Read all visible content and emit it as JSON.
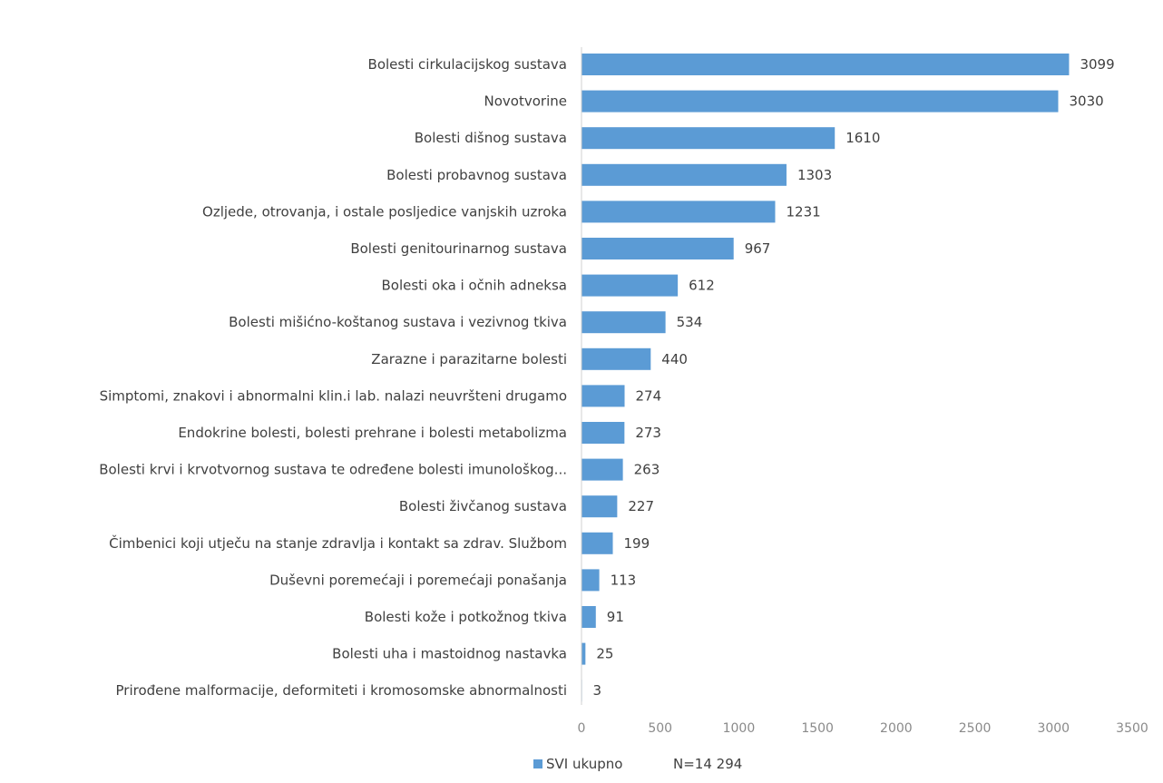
{
  "chart_data": {
    "type": "bar",
    "orientation": "horizontal",
    "categories": [
      "Bolesti cirkulacijskog sustava",
      "Novotvorine",
      "Bolesti dišnog sustava",
      "Bolesti probavnog sustava",
      "Ozljede, otrovanja, i ostale posljedice vanjskih uzroka",
      "Bolesti genitourinarnog sustava",
      "Bolesti oka i očnih adneksa",
      "Bolesti mišićno-koštanog sustava i vezivnog tkiva",
      "Zarazne i parazitarne bolesti",
      "Simptomi, znakovi i abnormalni klin.i lab. nalazi neuvršteni drugamo",
      "Endokrine bolesti, bolesti prehrane i bolesti metabolizma",
      "Bolesti krvi i krvotvornog sustava te određene bolesti imunološkog...",
      "Bolesti živčanog sustava",
      "Čimbenici koji utječu na stanje zdravlja i kontakt sa zdrav. Službom",
      "Duševni poremećaji i poremećaji ponašanja",
      "Bolesti kože i potkožnog tkiva",
      "Bolesti uha i mastoidnog nastavka",
      "Prirođene malformacije, deformiteti i kromosomske abnormalnosti"
    ],
    "series": [
      {
        "name": "SVI ukupno",
        "color": "#5b9bd5",
        "values": [
          3099,
          3030,
          1610,
          1303,
          1231,
          967,
          612,
          534,
          440,
          274,
          273,
          263,
          227,
          199,
          113,
          91,
          25,
          3
        ]
      }
    ],
    "xlim": [
      0,
      3500
    ],
    "ticks": [
      0,
      500,
      1000,
      1500,
      2000,
      2500,
      3000,
      3500
    ],
    "grid": false,
    "legend_position": "bottom",
    "legend_note": "N=14 294"
  }
}
